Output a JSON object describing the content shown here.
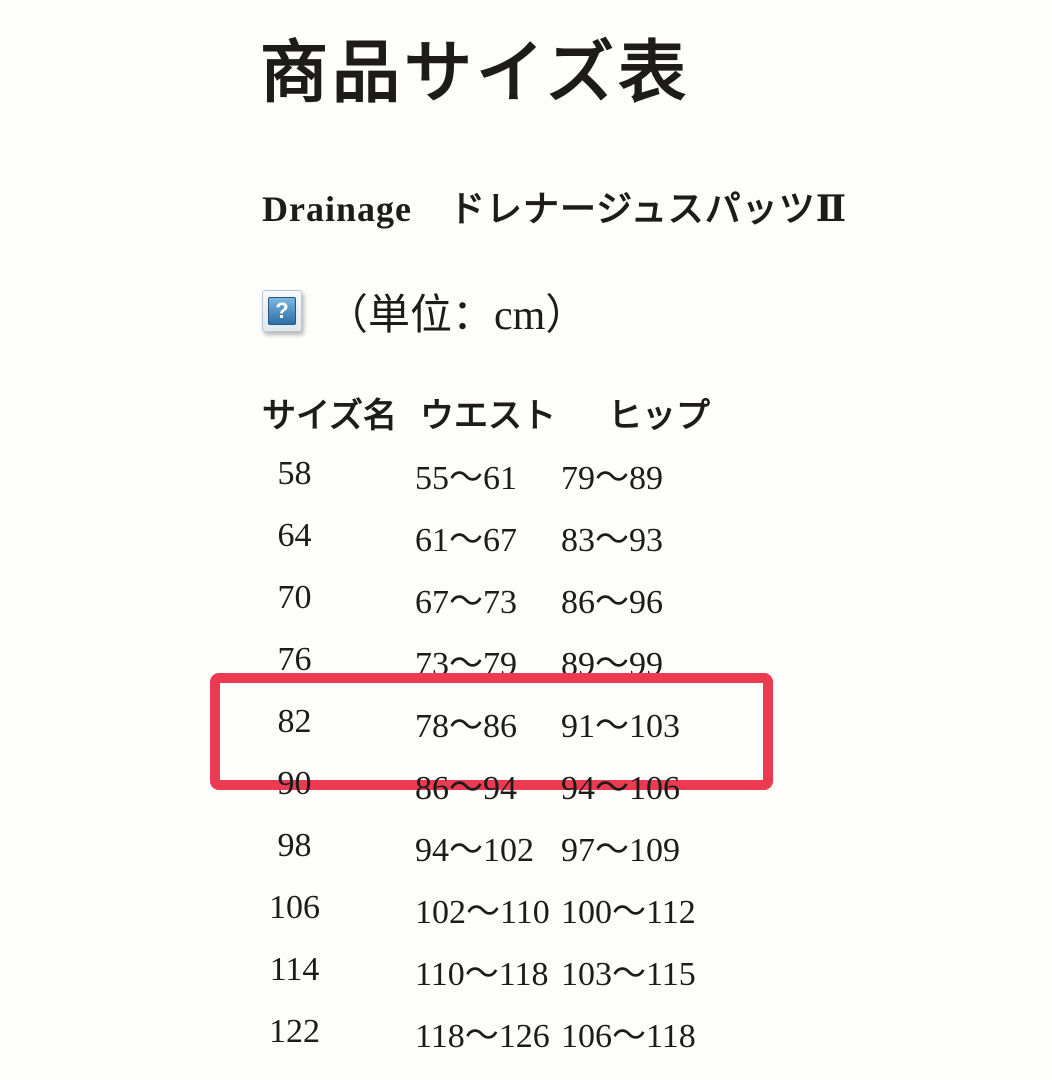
{
  "page": {
    "title": "商品サイズ表",
    "subtitle": "Drainage　ドレナージュスパッツⅡ",
    "unit_label": "（単位：cm）",
    "icon_glyph": "?",
    "icon_name": "broken-image-question-icon"
  },
  "table": {
    "headers": {
      "size": "サイズ名",
      "waist": "ウエスト",
      "hip": "ヒップ"
    },
    "rows": [
      {
        "size": "58",
        "waist": "55〜61",
        "hip": "79〜89",
        "highlighted": false
      },
      {
        "size": "64",
        "waist": "61〜67",
        "hip": "83〜93",
        "highlighted": false
      },
      {
        "size": "70",
        "waist": "67〜73",
        "hip": "86〜96",
        "highlighted": false
      },
      {
        "size": "76",
        "waist": "73〜79",
        "hip": "89〜99",
        "highlighted": false
      },
      {
        "size": "82",
        "waist": "78〜86",
        "hip": "91〜103",
        "highlighted": true
      },
      {
        "size": "90",
        "waist": "86〜94",
        "hip": "94〜106",
        "highlighted": false
      },
      {
        "size": "98",
        "waist": "94〜102",
        "hip": "97〜109",
        "highlighted": false
      },
      {
        "size": "106",
        "waist": "102〜110",
        "hip": "100〜112",
        "highlighted": false
      },
      {
        "size": "114",
        "waist": "110〜118",
        "hip": "103〜115",
        "highlighted": false
      },
      {
        "size": "122",
        "waist": "118〜126",
        "hip": "106〜118",
        "highlighted": false
      }
    ]
  },
  "colors": {
    "background": "#fdfdfc",
    "text": "#1d1c1a",
    "highlight_border": "#ec3a50",
    "icon_blue_top": "#7db7e0",
    "icon_blue_bottom": "#2d6ea6"
  }
}
